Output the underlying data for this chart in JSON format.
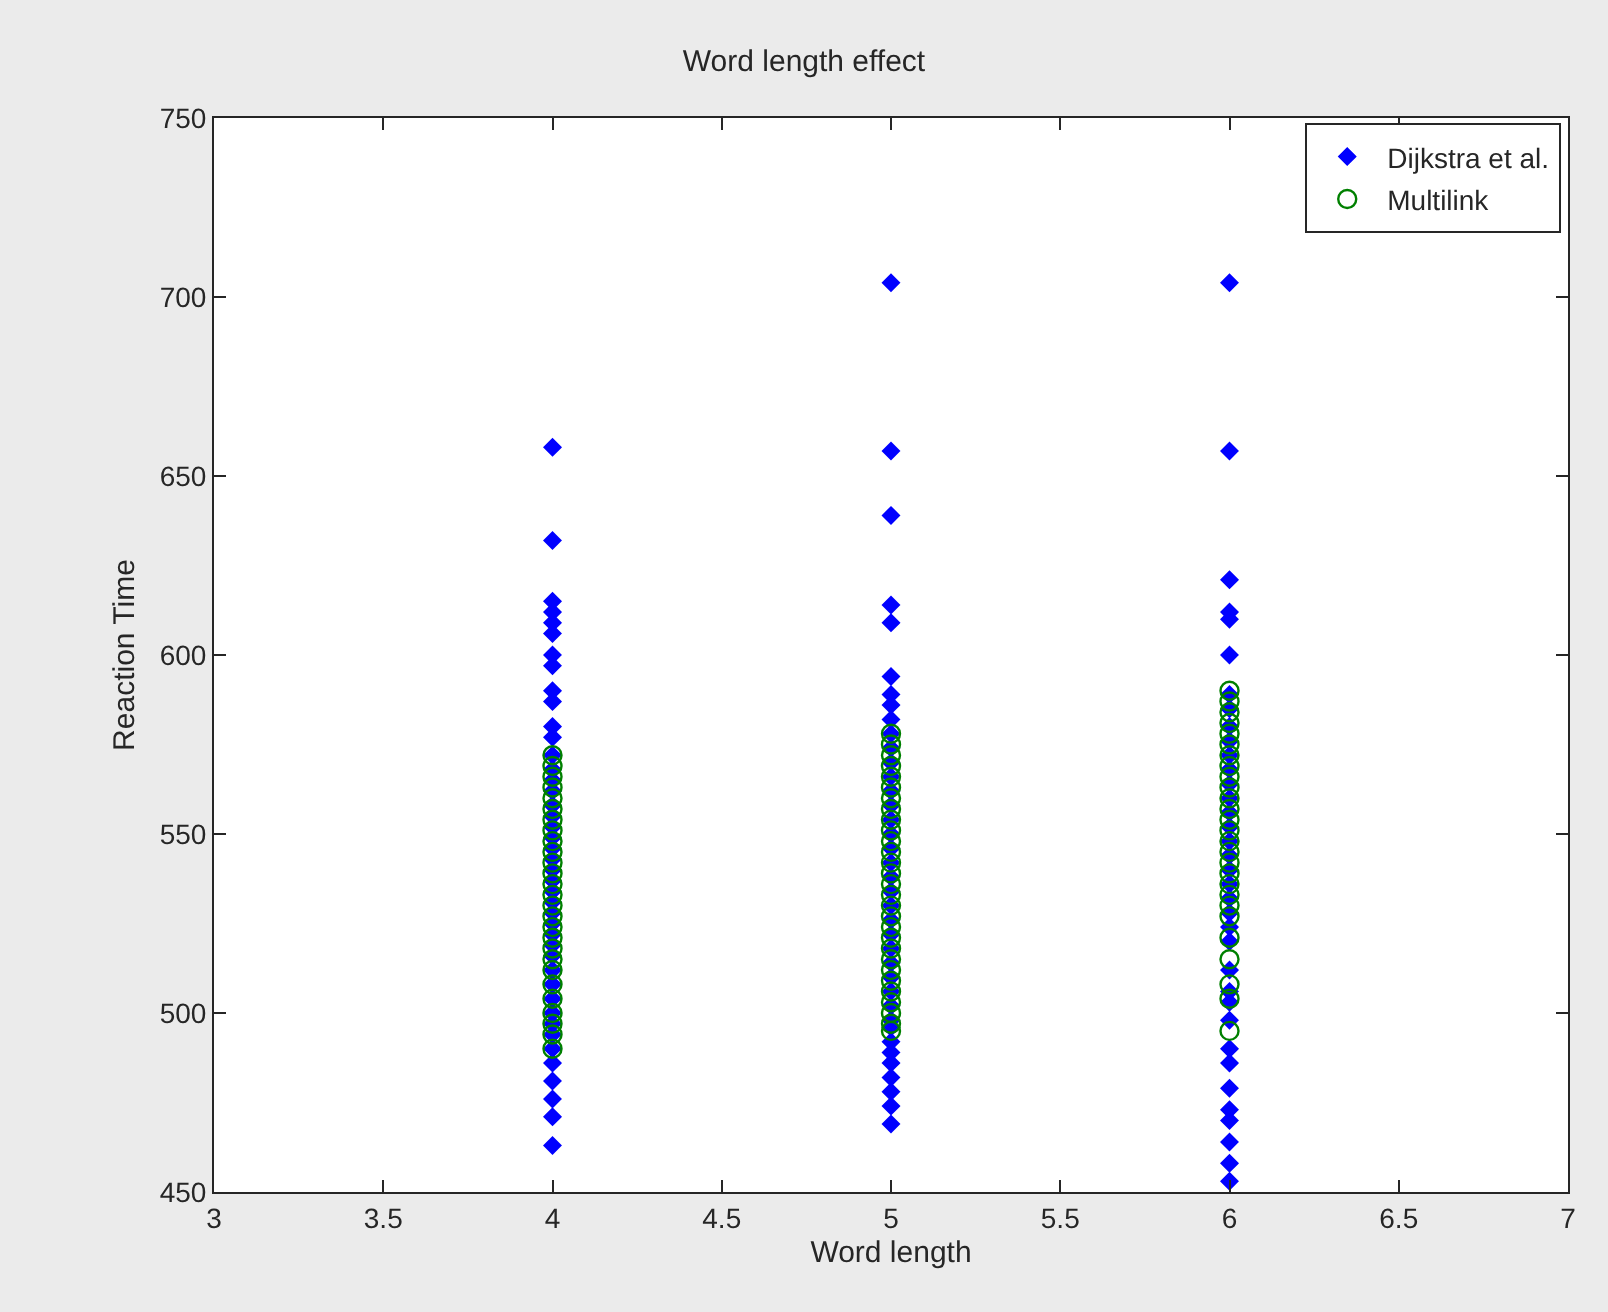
{
  "chart_data": {
    "type": "scatter",
    "title": "Word length effect",
    "xlabel": "Word length",
    "ylabel": "Reaction Time",
    "xlim": [
      3,
      7
    ],
    "xticks": [
      3,
      3.5,
      4,
      4.5,
      5,
      5.5,
      6,
      6.5,
      7
    ],
    "ylim": [
      450,
      750
    ],
    "yticks": [
      450,
      500,
      550,
      600,
      650,
      700,
      750
    ],
    "legend": "top right",
    "series": [
      {
        "name": "Dijkstra et al.",
        "color": "#0000ff",
        "marker": "diamond",
        "x": [
          4,
          4,
          4,
          4,
          4,
          4,
          4,
          4,
          4,
          4,
          4,
          4,
          4,
          4,
          4,
          4,
          4,
          4,
          4,
          4,
          4,
          4,
          4,
          4,
          4,
          4,
          4,
          4,
          4,
          4,
          4,
          4,
          4,
          4,
          4,
          4,
          4,
          4,
          4,
          4,
          4,
          4,
          4,
          5,
          5,
          5,
          5,
          5,
          5,
          5,
          5,
          5,
          5,
          5,
          5,
          5,
          5,
          5,
          5,
          5,
          5,
          5,
          5,
          5,
          5,
          5,
          5,
          5,
          5,
          5,
          5,
          5,
          5,
          5,
          5,
          5,
          5,
          5,
          5,
          5,
          5,
          6,
          6,
          6,
          6,
          6,
          6,
          6,
          6,
          6,
          6,
          6,
          6,
          6,
          6,
          6,
          6,
          6,
          6,
          6,
          6,
          6,
          6,
          6,
          6,
          6,
          6,
          6,
          6,
          6,
          6,
          6,
          6,
          6,
          6,
          6,
          6
        ],
        "values": [
          658,
          632,
          615,
          612,
          609,
          606,
          600,
          597,
          590,
          587,
          580,
          577,
          572,
          568,
          565,
          562,
          558,
          555,
          552,
          549,
          546,
          543,
          540,
          537,
          534,
          531,
          528,
          525,
          522,
          519,
          516,
          512,
          508,
          504,
          500,
          497,
          494,
          490,
          486,
          481,
          476,
          471,
          463,
          704,
          657,
          639,
          614,
          609,
          594,
          589,
          586,
          582,
          578,
          574,
          570,
          566,
          562,
          558,
          554,
          550,
          546,
          542,
          538,
          534,
          530,
          526,
          522,
          518,
          514,
          510,
          506,
          502,
          498,
          496,
          492,
          489,
          486,
          482,
          478,
          474,
          469,
          704,
          657,
          621,
          612,
          610,
          600,
          589,
          585,
          580,
          576,
          572,
          568,
          564,
          560,
          556,
          552,
          548,
          544,
          540,
          536,
          532,
          528,
          524,
          520,
          512,
          506,
          503,
          498,
          490,
          486,
          479,
          473,
          470,
          464,
          458,
          453
        ]
      },
      {
        "name": "Multilink",
        "color": "#008000",
        "marker": "circle",
        "x": [
          4,
          4,
          4,
          4,
          4,
          4,
          4,
          4,
          4,
          4,
          4,
          4,
          4,
          4,
          4,
          4,
          4,
          4,
          4,
          4,
          4,
          4,
          4,
          4,
          4,
          4,
          4,
          5,
          5,
          5,
          5,
          5,
          5,
          5,
          5,
          5,
          5,
          5,
          5,
          5,
          5,
          5,
          5,
          5,
          5,
          5,
          5,
          5,
          5,
          5,
          5,
          5,
          5,
          5,
          5,
          5,
          6,
          6,
          6,
          6,
          6,
          6,
          6,
          6,
          6,
          6,
          6,
          6,
          6,
          6,
          6,
          6,
          6,
          6,
          6,
          6,
          6,
          6,
          6,
          6,
          6,
          6,
          6
        ],
        "values": [
          572,
          569,
          566,
          563,
          560,
          557,
          554,
          551,
          548,
          545,
          542,
          539,
          536,
          533,
          530,
          527,
          524,
          521,
          518,
          515,
          512,
          508,
          504,
          500,
          497,
          494,
          490,
          578,
          575,
          572,
          569,
          566,
          563,
          560,
          557,
          554,
          551,
          548,
          545,
          542,
          539,
          536,
          533,
          530,
          527,
          524,
          521,
          518,
          515,
          512,
          509,
          506,
          503,
          500,
          497,
          495,
          590,
          587,
          584,
          581,
          578,
          575,
          572,
          569,
          566,
          563,
          560,
          557,
          554,
          551,
          548,
          545,
          542,
          539,
          536,
          533,
          530,
          527,
          521,
          515,
          508,
          504,
          495
        ]
      }
    ]
  }
}
